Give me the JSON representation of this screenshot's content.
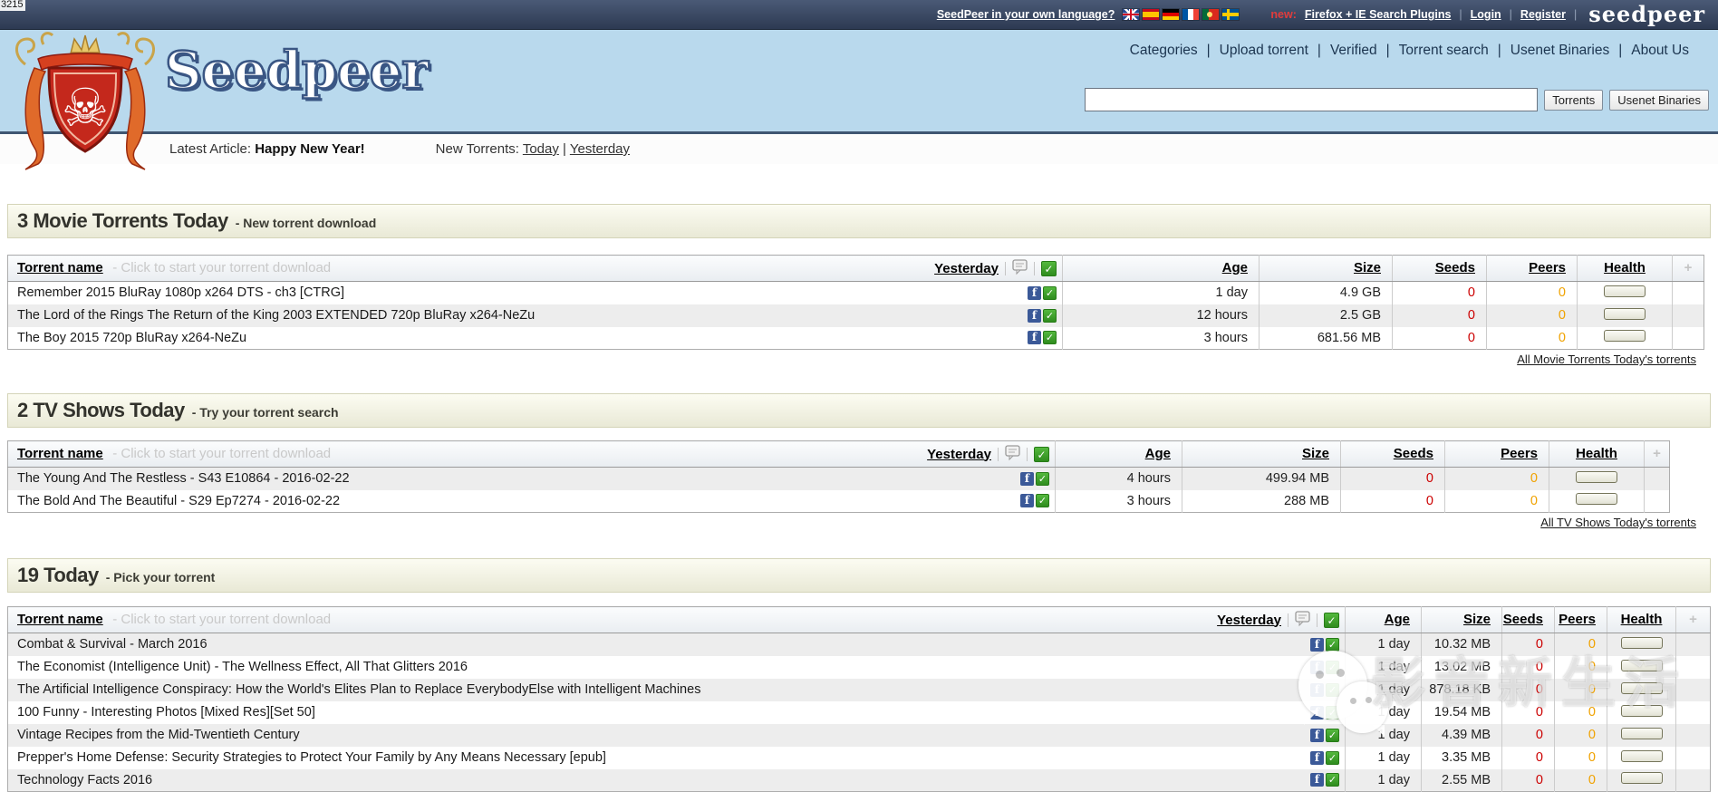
{
  "stray_text": "3215",
  "topbar": {
    "language_link": "SeedPeer in your own language?",
    "flags": [
      "uk",
      "spain",
      "germany",
      "france",
      "portugal",
      "sweden"
    ],
    "new_label": "new:",
    "plugins_link": "Firefox + IE Search Plugins",
    "login_link": "Login",
    "register_link": "Register",
    "wordmark": "seedpeer"
  },
  "header": {
    "logo_text": "Seedpeer",
    "nav": [
      "Categories",
      "Upload torrent",
      "Verified",
      "Torrent search",
      "Usenet Binaries",
      "About Us"
    ],
    "search": {
      "value": "",
      "torrents_button": "Torrents",
      "usenet_button": "Usenet Binaries"
    }
  },
  "subheader": {
    "latest_article_label": "Latest Article:",
    "latest_article_title": "Happy New Year!",
    "new_torrents_label": "New Torrents:",
    "today_link": "Today",
    "yesterday_link": "Yesterday"
  },
  "table_header": {
    "name": "Torrent name",
    "hint": "- Click to start your torrent download",
    "yesterday": "Yesterday",
    "age": "Age",
    "size": "Size",
    "seeds": "Seeds",
    "peers": "Peers",
    "health": "Health",
    "plus": "+"
  },
  "sections": [
    {
      "title": "3 Movie Torrents Today",
      "subtitle": "- New torrent download",
      "alt_start_gray": false,
      "rows": [
        {
          "name": "Remember 2015 BluRay 1080p x264 DTS - ch3 [CTRG]",
          "age": "1 day",
          "size": "4.9 GB",
          "seeds": "0",
          "peers": "0"
        },
        {
          "name": "The Lord of the Rings The Return of the King 2003 EXTENDED 720p BluRay x264-NeZu",
          "age": "12 hours",
          "size": "2.5 GB",
          "seeds": "0",
          "peers": "0"
        },
        {
          "name": "The Boy 2015 720p BluRay x264-NeZu",
          "age": "3 hours",
          "size": "681.56 MB",
          "seeds": "0",
          "peers": "0"
        }
      ],
      "footer_link": "All Movie Torrents Today's torrents"
    },
    {
      "title": "2 TV Shows Today",
      "subtitle": "- Try your torrent search",
      "alt_start_gray": true,
      "rows": [
        {
          "name": "The Young And The Restless - S43 E10864 - 2016-02-22",
          "age": "4 hours",
          "size": "499.94 MB",
          "seeds": "0",
          "peers": "0"
        },
        {
          "name": "The Bold And The Beautiful - S29 Ep7274 - 2016-02-22",
          "age": "3 hours",
          "size": "288 MB",
          "seeds": "0",
          "peers": "0"
        }
      ],
      "footer_link": "All TV Shows Today's torrents"
    },
    {
      "title": "19 Today",
      "subtitle": "- Pick your torrent",
      "alt_start_gray": true,
      "rows": [
        {
          "name": "Combat & Survival - March 2016",
          "age": "1 day",
          "size": "10.32 MB",
          "seeds": "0",
          "peers": "0"
        },
        {
          "name": "The Economist (Intelligence Unit) - The Wellness Effect, All That Glitters 2016",
          "age": "1 day",
          "size": "13.02 MB",
          "seeds": "0",
          "peers": "0"
        },
        {
          "name": "The Artificial Intelligence Conspiracy: How the World's Elites Plan to Replace EverybodyElse with Intelligent Machines",
          "age": "1 day",
          "size": "878.18 KB",
          "seeds": "0",
          "peers": "0"
        },
        {
          "name": "100 Funny - Interesting Photos [Mixed Res][Set 50]",
          "age": "1 day",
          "size": "19.54 MB",
          "seeds": "0",
          "peers": "0"
        },
        {
          "name": "Vintage Recipes from the Mid-Twentieth Century",
          "age": "1 day",
          "size": "4.39 MB",
          "seeds": "0",
          "peers": "0"
        },
        {
          "name": "Prepper's Home Defense: Security Strategies to Protect Your Family by Any Means Necessary [epub]",
          "age": "1 day",
          "size": "3.35 MB",
          "seeds": "0",
          "peers": "0"
        },
        {
          "name": "Technology Facts 2016",
          "age": "1 day",
          "size": "2.55 MB",
          "seeds": "0",
          "peers": "0"
        }
      ],
      "footer_link": null
    }
  ],
  "watermark": {
    "text": "影音新生活"
  },
  "colors": {
    "seeds": "#cc0000",
    "peers": "#f0a200",
    "facebook": "#3b5998",
    "check_green": "#3fa142",
    "topbar_bg": "#33405a",
    "header_bg": "#b9d9ed",
    "section_bar_bg": "#f2f2e2"
  }
}
